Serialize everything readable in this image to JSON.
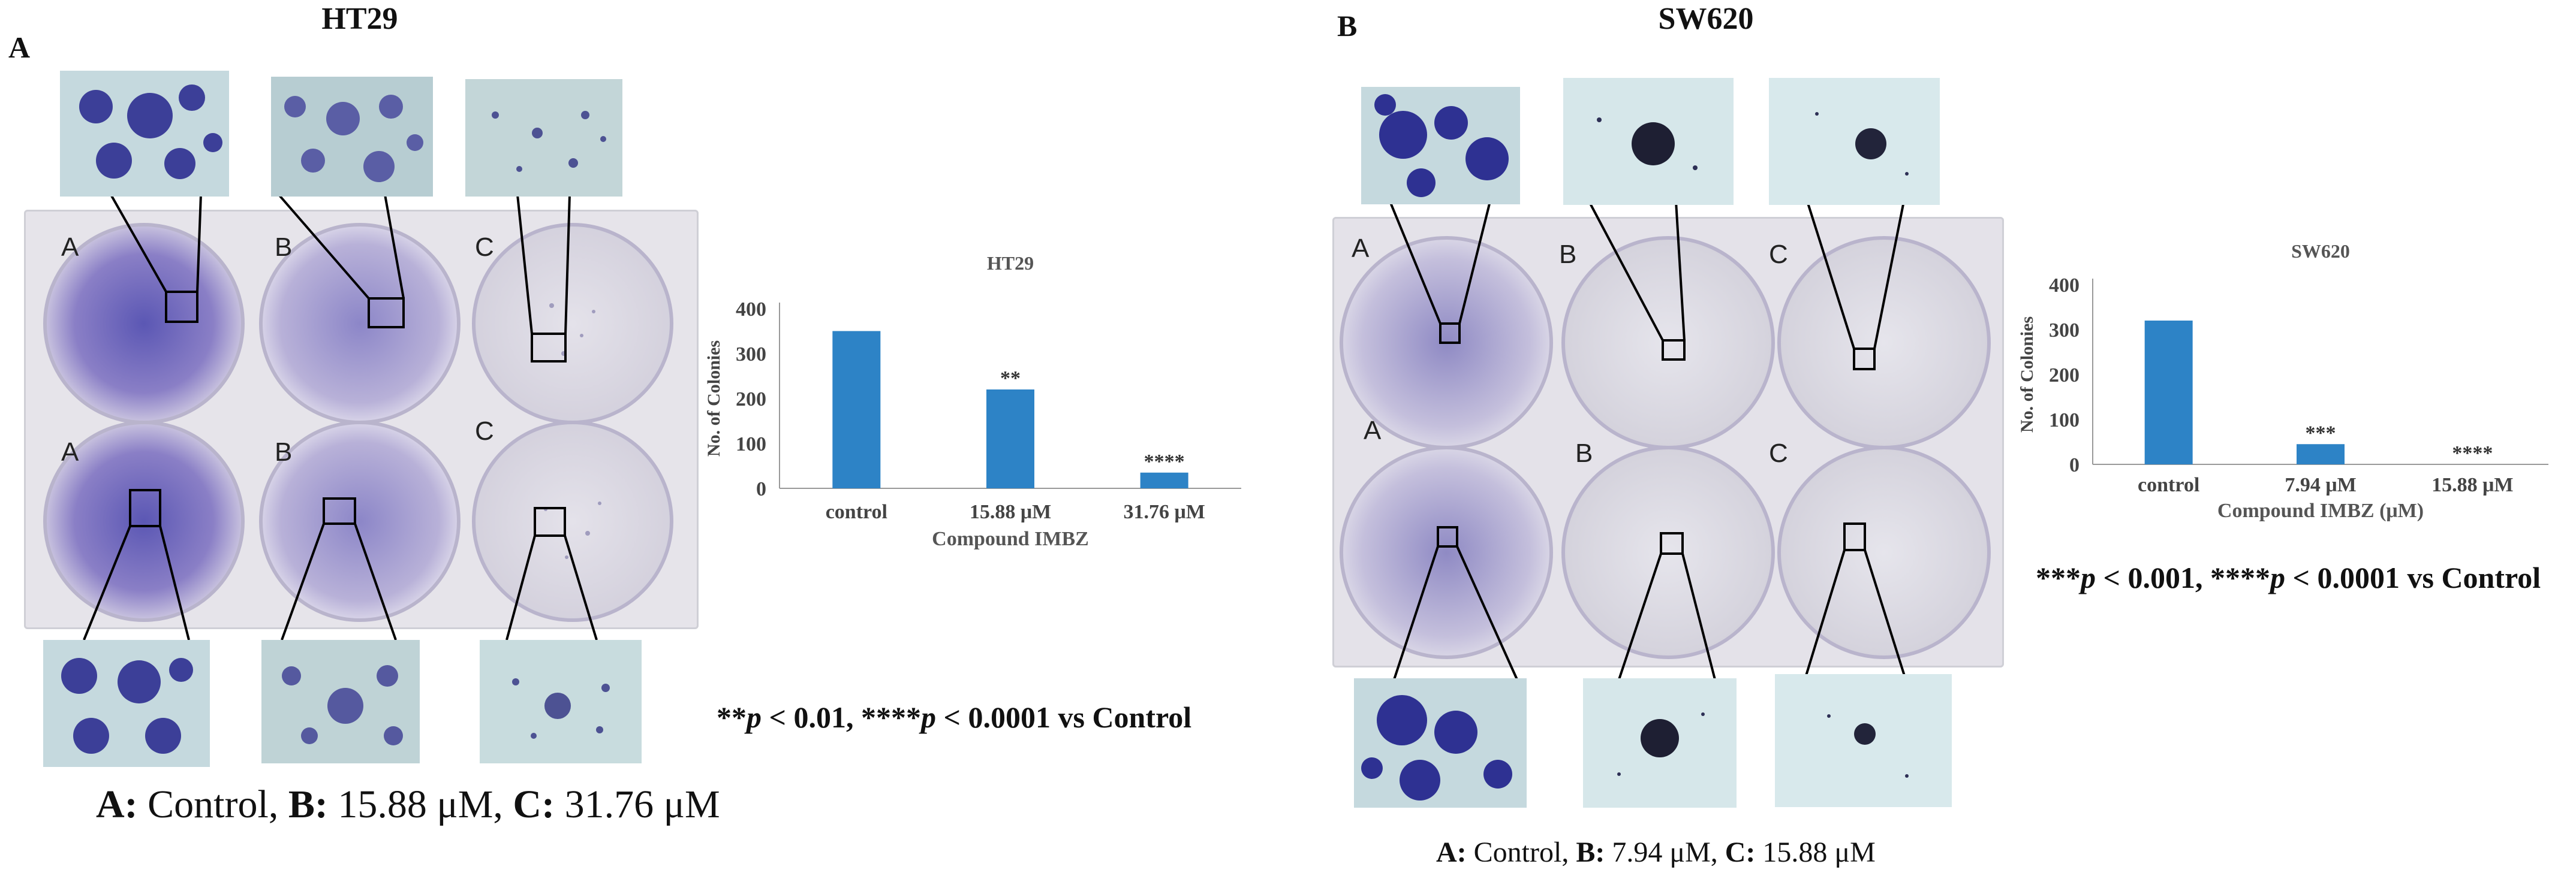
{
  "panels": [
    {
      "letter": "A",
      "title": "HT29",
      "wells": [
        {
          "label": "A"
        },
        {
          "label": "B"
        },
        {
          "label": "C"
        },
        {
          "label": "A"
        },
        {
          "label": "B"
        },
        {
          "label": "C"
        }
      ],
      "caption": {
        "a_label": "A:",
        "a_text": " Control, ",
        "b_label": "B:",
        "b_text": " 15.88 μM, ",
        "c_label": "C:",
        "c_text": " 31.76 μM"
      },
      "significance": {
        "p1_stars": "**",
        "p1_letter": "p",
        "p1_rest": " < 0.01, ",
        "p2_stars": "****",
        "p2_letter": "p",
        "p2_rest": " < 0.0001 vs Control"
      }
    },
    {
      "letter": "B",
      "title": "SW620",
      "wells": [
        {
          "label": "A"
        },
        {
          "label": "B"
        },
        {
          "label": "C"
        },
        {
          "label": "A"
        },
        {
          "label": "B"
        },
        {
          "label": "C"
        }
      ],
      "caption": {
        "a_label": "A:",
        "a_text": " Control, ",
        "b_label": "B:",
        "b_text": " 7.94 μM, ",
        "c_label": "C:",
        "c_text": " 15.88 μM"
      },
      "significance": {
        "p1_stars": "***",
        "p1_letter": "p",
        "p1_rest": " < 0.001, ",
        "p2_stars": "****",
        "p2_letter": "p",
        "p2_rest": " < 0.0001 vs Control"
      }
    }
  ],
  "colors": {
    "bar": "#2d83c6",
    "stain": "#3a3f9a",
    "plate": "#e6e4ea",
    "photo_bg": "#c9dfe3"
  },
  "chart_data": [
    {
      "type": "bar",
      "title": "HT29",
      "categories": [
        "control",
        "15.88 μM",
        "31.76 μM"
      ],
      "values": [
        350,
        220,
        35
      ],
      "annotations": [
        "",
        "**",
        "****"
      ],
      "xlabel": "Compound IMBZ",
      "ylabel": "No. of Colonies",
      "ylim": [
        0,
        400
      ],
      "yticks": [
        0,
        100,
        200,
        300,
        400
      ],
      "grid": false
    },
    {
      "type": "bar",
      "title": "SW620",
      "categories": [
        "control",
        "7.94 μM",
        "15.88 μM"
      ],
      "values": [
        320,
        45,
        0
      ],
      "annotations": [
        "",
        "***",
        "****"
      ],
      "xlabel": "Compound IMBZ (μM)",
      "ylabel": "No. of Colonies",
      "ylim": [
        0,
        400
      ],
      "yticks": [
        0,
        100,
        200,
        300,
        400
      ],
      "grid": false
    }
  ]
}
